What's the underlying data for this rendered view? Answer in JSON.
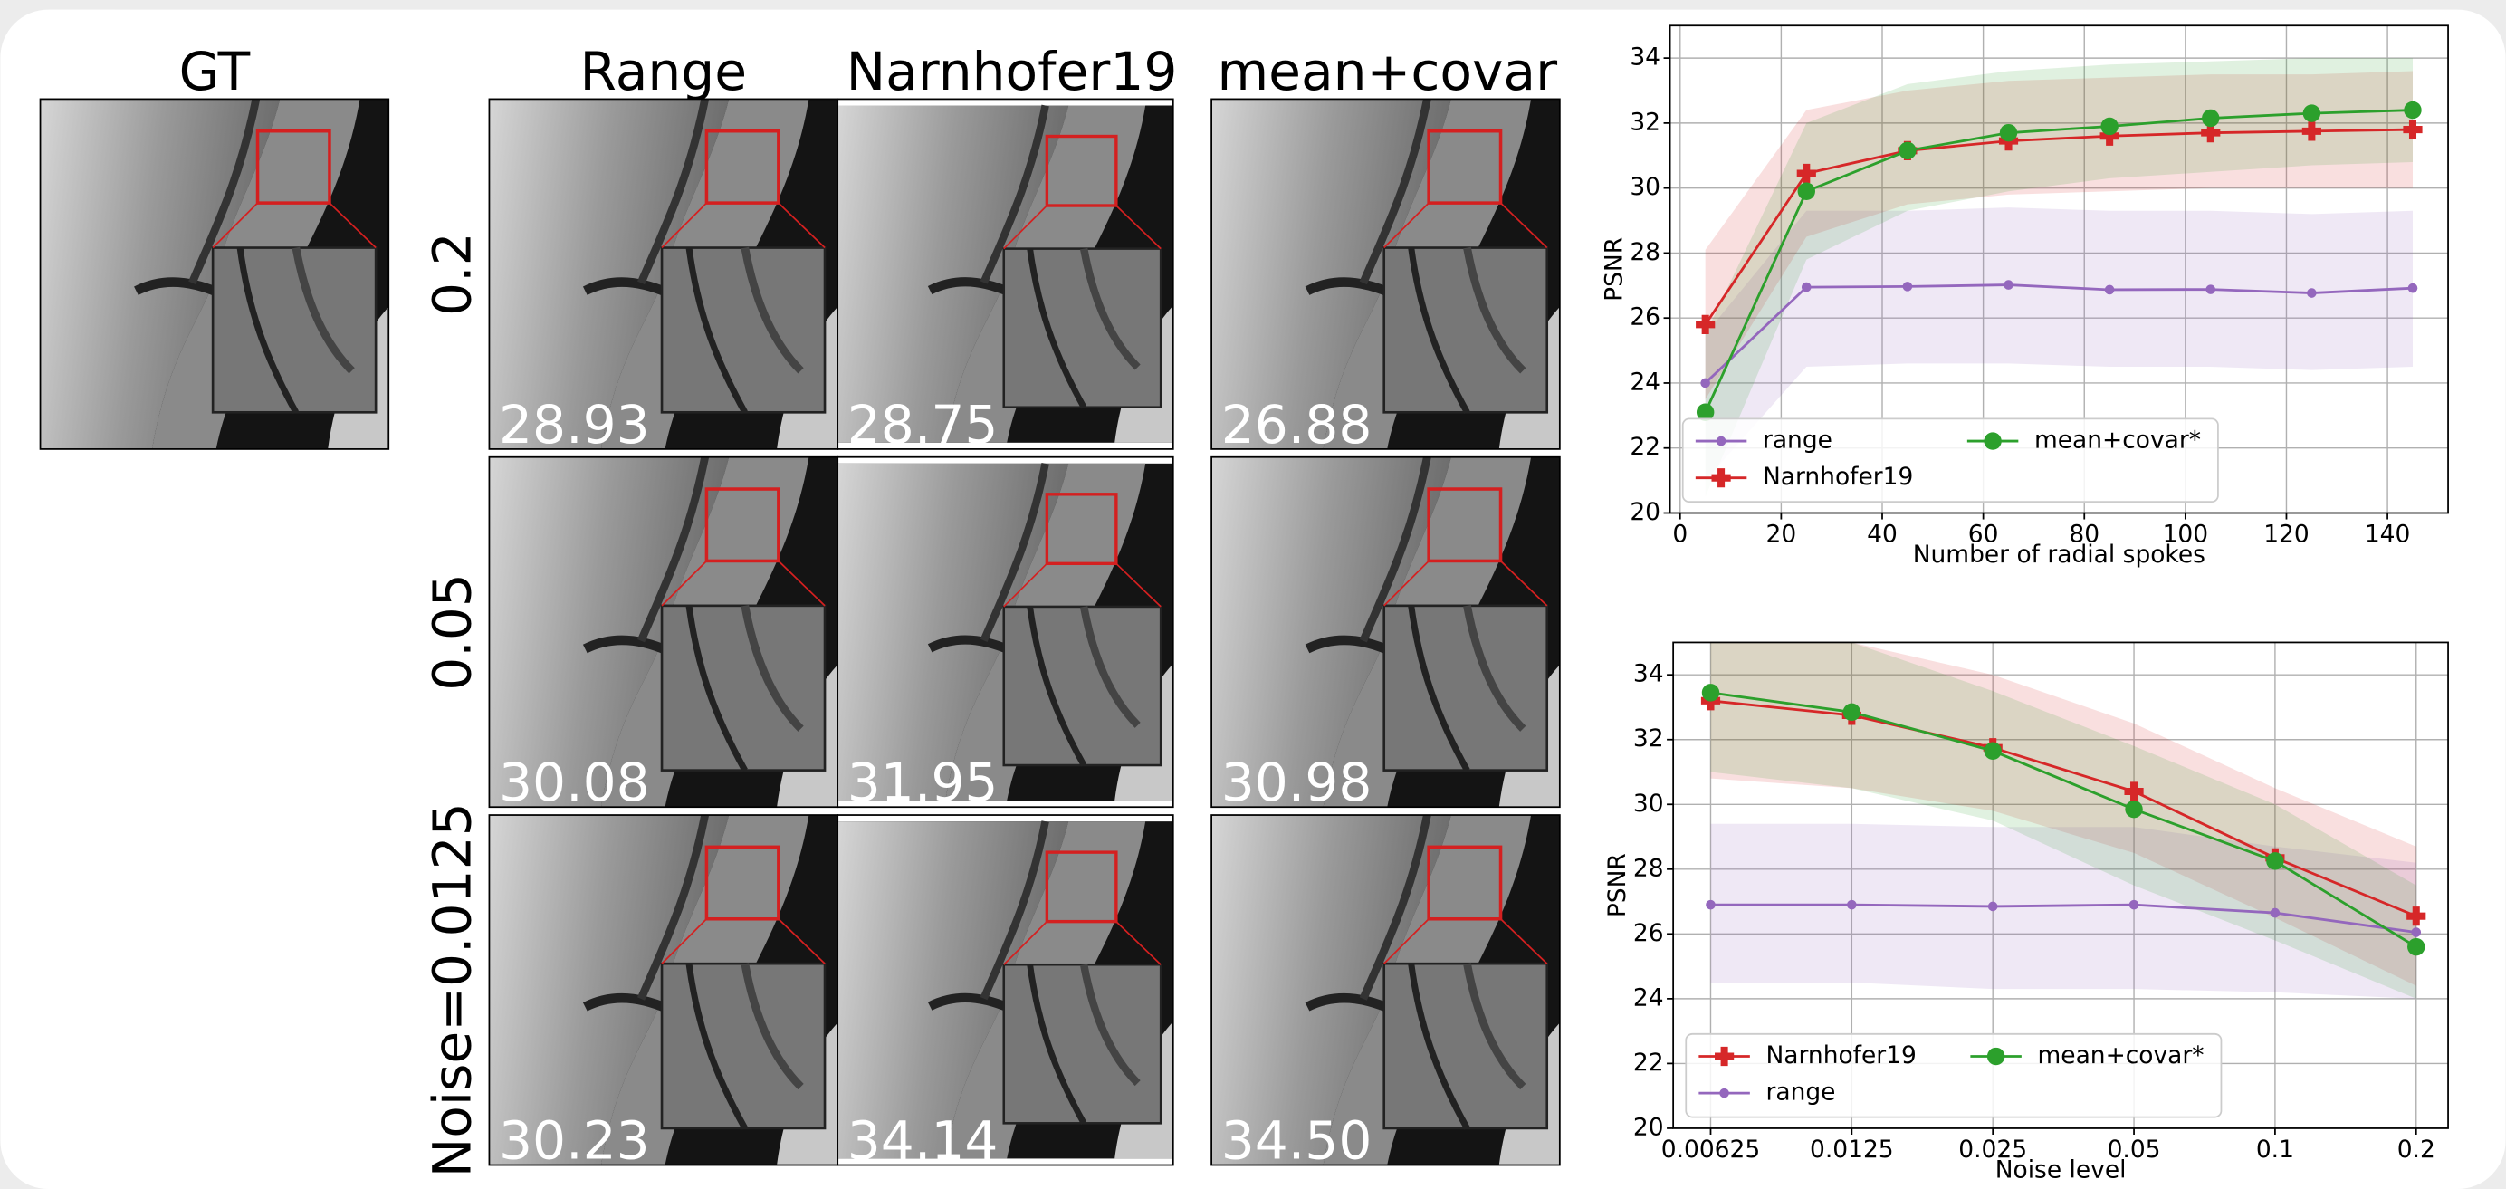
{
  "figure": {
    "columns": [
      "GT",
      "Range",
      "Narnhofer19",
      "mean+covar"
    ],
    "rows": [
      {
        "label": "0.2",
        "psnr": [
          "28.93",
          "28.75",
          "26.88"
        ]
      },
      {
        "label": "0.05",
        "psnr": [
          "30.08",
          "31.95",
          "30.98"
        ]
      },
      {
        "label": "Noise=0.0125",
        "psnr": [
          "30.23",
          "34.14",
          "34.50"
        ]
      }
    ]
  },
  "chart_data": [
    {
      "type": "line",
      "xlabel": "Number of radial spokes",
      "ylabel": "PSNR",
      "x": [
        5,
        25,
        45,
        65,
        85,
        105,
        125,
        145
      ],
      "xlim": [
        -2,
        152
      ],
      "xticks": [
        0,
        20,
        40,
        60,
        80,
        100,
        120,
        140
      ],
      "ylim": [
        20,
        35
      ],
      "yticks": [
        20,
        22,
        24,
        26,
        28,
        30,
        32,
        34
      ],
      "grid": true,
      "legend": "lower left",
      "series": [
        {
          "name": "range",
          "color": "#9467bd",
          "marker": "circle",
          "markersize": 3,
          "values": [
            24.0,
            26.95,
            26.97,
            27.02,
            26.87,
            26.88,
            26.77,
            26.92
          ],
          "lower": [
            21.0,
            24.5,
            24.6,
            24.6,
            24.5,
            24.5,
            24.4,
            24.5
          ],
          "upper": [
            25.5,
            29.3,
            29.3,
            29.4,
            29.3,
            29.3,
            29.2,
            29.3
          ]
        },
        {
          "name": "Narnhofer19",
          "color": "#d62728",
          "marker": "plus",
          "markersize": 6,
          "values": [
            25.8,
            30.45,
            31.15,
            31.45,
            31.6,
            31.7,
            31.75,
            31.8
          ],
          "lower": [
            23.5,
            28.5,
            29.5,
            29.8,
            29.9,
            30.0,
            30.0,
            30.0
          ],
          "upper": [
            28.1,
            32.4,
            33.0,
            33.3,
            33.4,
            33.5,
            33.5,
            33.6
          ]
        },
        {
          "name": "mean+covar*",
          "color": "#2ca02c",
          "marker": "circle",
          "markersize": 5.5,
          "values": [
            23.1,
            29.9,
            31.15,
            31.7,
            31.9,
            32.15,
            32.3,
            32.4
          ],
          "lower": [
            20.5,
            27.8,
            29.3,
            29.9,
            30.3,
            30.5,
            30.7,
            30.8
          ],
          "upper": [
            25.5,
            32.0,
            33.2,
            33.6,
            33.8,
            33.9,
            34.0,
            34.0
          ]
        }
      ]
    },
    {
      "type": "line",
      "xlabel": "Noise level",
      "ylabel": "PSNR",
      "xscale": "log",
      "x": [
        0.00625,
        0.0125,
        0.025,
        0.05,
        0.1,
        0.2
      ],
      "xlim": [
        0.0052,
        0.234
      ],
      "xticks": [
        0.00625,
        0.0125,
        0.025,
        0.05,
        0.1,
        0.2
      ],
      "ylim": [
        20,
        35
      ],
      "yticks": [
        20,
        22,
        24,
        26,
        28,
        30,
        32,
        34
      ],
      "grid": true,
      "legend": "lower left",
      "series": [
        {
          "name": "Narnhofer19",
          "color": "#d62728",
          "marker": "plus",
          "markersize": 6,
          "values": [
            33.2,
            32.75,
            31.75,
            30.4,
            28.35,
            26.55
          ],
          "lower": [
            30.8,
            30.5,
            29.8,
            28.5,
            26.5,
            24.4
          ],
          "upper": [
            35,
            35,
            34.0,
            32.5,
            30.5,
            28.7
          ]
        },
        {
          "name": "range",
          "color": "#9467bd",
          "marker": "circle",
          "markersize": 3,
          "values": [
            26.9,
            26.9,
            26.85,
            26.9,
            26.65,
            26.05
          ],
          "lower": [
            24.5,
            24.5,
            24.3,
            24.3,
            24.2,
            24.0
          ],
          "upper": [
            29.4,
            29.4,
            29.3,
            29.3,
            28.7,
            28.2
          ]
        },
        {
          "name": "mean+covar*",
          "color": "#2ca02c",
          "marker": "circle",
          "markersize": 5.5,
          "values": [
            33.45,
            32.85,
            31.65,
            29.85,
            28.25,
            25.6
          ],
          "lower": [
            31.0,
            30.5,
            29.5,
            27.5,
            25.8,
            24.0
          ],
          "upper": [
            35,
            35,
            33.5,
            31.8,
            30.0,
            27.5
          ]
        }
      ]
    }
  ]
}
